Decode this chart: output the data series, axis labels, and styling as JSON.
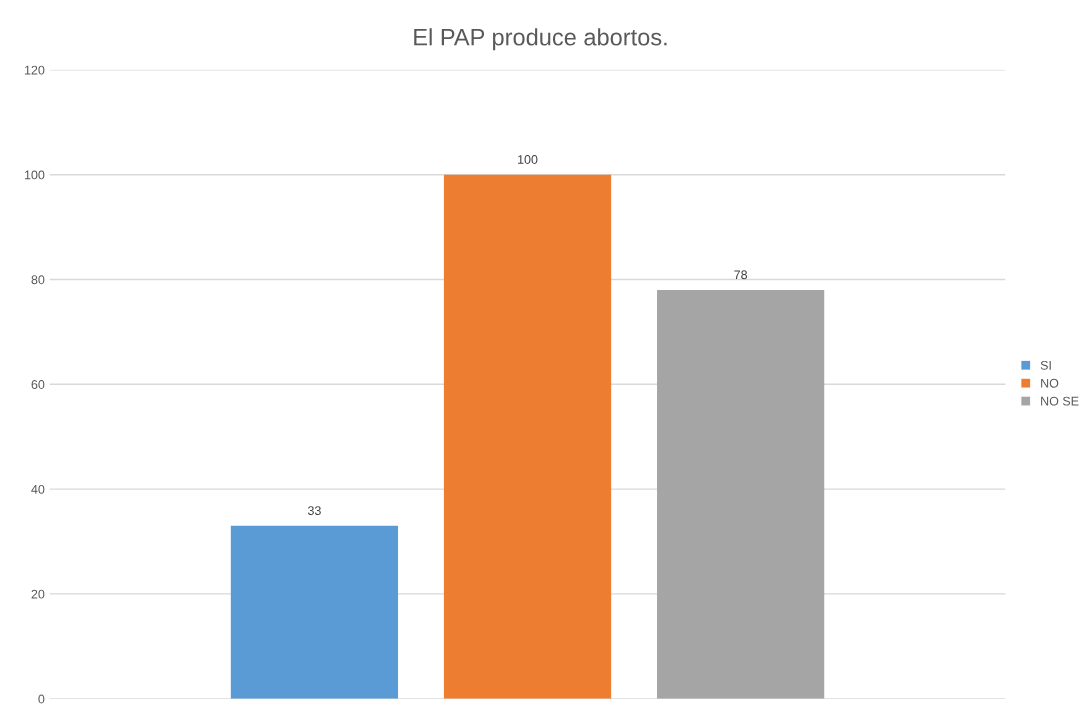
{
  "chart_data": {
    "type": "bar",
    "title": "El PAP produce abortos.",
    "categories": [
      null
    ],
    "series": [
      {
        "name": "SI",
        "color": "#5b9bd5",
        "values": [
          33
        ]
      },
      {
        "name": "NO",
        "color": "#ed7d31",
        "values": [
          100
        ]
      },
      {
        "name": "NO SE",
        "color": "#a5a5a5",
        "values": [
          78
        ]
      }
    ],
    "ylim": [
      0,
      120
    ],
    "yticks": [
      0,
      20,
      40,
      60,
      80,
      100,
      120
    ],
    "grid": "y",
    "legend": "right",
    "data_labels": true,
    "tick_labels": "y"
  }
}
